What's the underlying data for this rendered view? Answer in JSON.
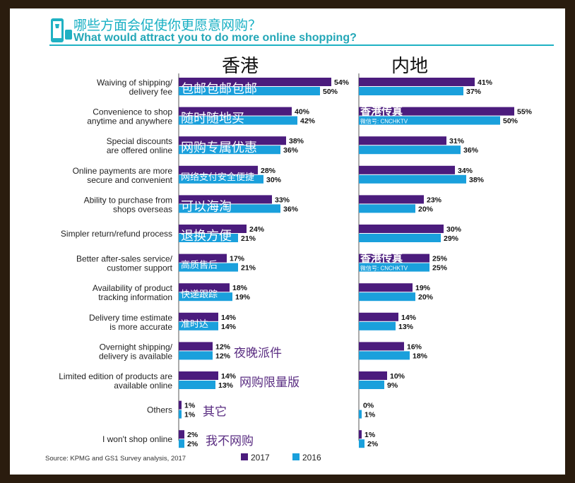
{
  "title": {
    "zh": "哪些方面会促使你更愿意网购？",
    "en": "What would attract you to do more online shopping?"
  },
  "source": "Source: KPMG and GS1 Survey analysis, 2017",
  "colors": {
    "y2017": "#4b1c7d",
    "y2016": "#1aa0dc",
    "title": "#1fb1c3"
  },
  "watermark": {
    "name": "香港传真",
    "sub": "微信号: CNCHKTV"
  },
  "chart_data": {
    "type": "bar",
    "orientation": "horizontal",
    "title": "What would attract you to do more online shopping?",
    "legend": [
      "2017",
      "2016"
    ],
    "legend_position": "bottom",
    "panels": [
      {
        "name": "香港",
        "series": [
          {
            "name": "2017",
            "values": [
              54,
              40,
              38,
              28,
              33,
              24,
              17,
              18,
              14,
              12,
              14,
              1,
              2
            ]
          },
          {
            "name": "2016",
            "values": [
              50,
              42,
              36,
              30,
              36,
              21,
              21,
              19,
              14,
              12,
              13,
              1,
              2
            ]
          }
        ],
        "annotations": [
          "包邮包邮包邮",
          "随时随地买",
          "网购专属优惠",
          "网络支付安全便捷",
          "可以海淘",
          "退换方便",
          "高质售后",
          "快递跟踪",
          "准时达",
          "夜晚派件",
          "网购限量版",
          "其它",
          "我不网购"
        ]
      },
      {
        "name": "内地",
        "series": [
          {
            "name": "2017",
            "values": [
              41,
              55,
              31,
              34,
              23,
              30,
              25,
              19,
              14,
              16,
              10,
              0,
              1
            ]
          },
          {
            "name": "2016",
            "values": [
              37,
              50,
              36,
              38,
              20,
              29,
              25,
              20,
              13,
              18,
              9,
              1,
              2
            ]
          }
        ]
      }
    ],
    "categories": [
      [
        "Waiving of shipping/",
        "delivery fee"
      ],
      [
        "Convenience to shop",
        "anytime and anywhere"
      ],
      [
        "Special discounts",
        "are offered online"
      ],
      [
        "Online payments are more",
        "secure and convenient"
      ],
      [
        "Ability to purchase from",
        "shops overseas"
      ],
      [
        "Simpler return/refund process"
      ],
      [
        "Better after-sales service/",
        "customer support"
      ],
      [
        "Availability of product",
        "tracking information"
      ],
      [
        "Delivery time estimate",
        "is more accurate"
      ],
      [
        "Overnight shipping/",
        "delivery  is available"
      ],
      [
        "Limited edition of products are",
        "available online"
      ],
      [
        "Others"
      ],
      [
        "I won't shop online"
      ]
    ]
  }
}
